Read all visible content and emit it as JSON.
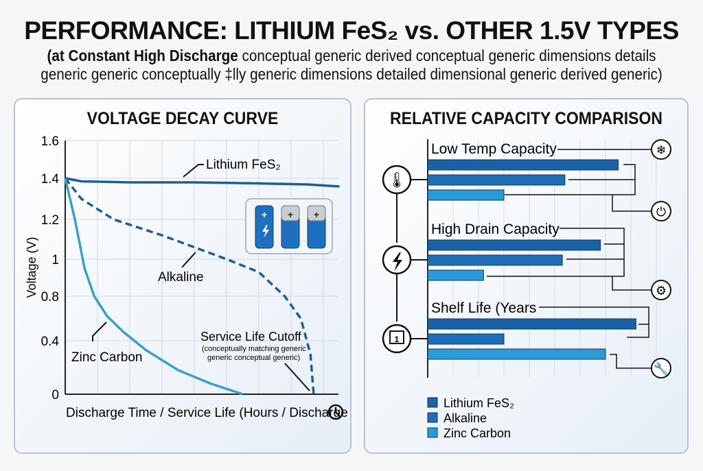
{
  "header": {
    "title": "PERFORMANCE: LITHIUM FeS₂ vs. OTHER 1.5V TYPES",
    "subtitle_bold": "(at Constant High Discharge",
    "subtitle_rest": " conceptual generic derived conceptual generic dimensions details",
    "subtitle_line2": "generic generic conceptually ‡lly generic dimensions detailed dimensional generic derived generic)"
  },
  "colors": {
    "lithium": "#1a62a8",
    "alkaline": "#1f6fb8",
    "zinc": "#2a9bd8",
    "line_lithium": "#1c5f98",
    "line_alkaline": "#1f5f94",
    "line_zinc": "#3aa0c8"
  },
  "chart_data": [
    {
      "type": "line",
      "title": "VOLTAGE DECAY CURVE",
      "xlabel": "Discharge Time / Service Life (Hours / Discharge",
      "ylabel": "Voltage (V)",
      "yticks": [
        "1.6",
        "1.4",
        "1.2",
        "1",
        "0.8",
        "0.4",
        "0"
      ],
      "ylim": [
        0,
        1.6
      ],
      "grid": true,
      "series": [
        {
          "name": "Lithium FeS₂",
          "style": "solid",
          "x": [
            0,
            0.5,
            2,
            4,
            6,
            7.5,
            8.5
          ],
          "y": [
            1.4,
            1.385,
            1.38,
            1.38,
            1.375,
            1.37,
            1.36
          ]
        },
        {
          "name": "Alkaline",
          "style": "dashed",
          "x": [
            0,
            0.5,
            1.5,
            3,
            4,
            5,
            6,
            6.8,
            7.3,
            7.6,
            7.7
          ],
          "y": [
            1.4,
            1.3,
            1.2,
            1.12,
            1.06,
            1.0,
            0.93,
            0.8,
            0.6,
            0.3,
            0
          ]
        },
        {
          "name": "Zinc Carbon",
          "style": "solid",
          "x": [
            0,
            0.3,
            0.6,
            0.9,
            1.3,
            1.8,
            2.5,
            3.5,
            4.5,
            5.5
          ],
          "y": [
            1.4,
            1.2,
            0.95,
            0.8,
            0.62,
            0.48,
            0.33,
            0.18,
            0.08,
            0
          ]
        }
      ],
      "annotations": {
        "cutoff": "Service Life Cutoff",
        "cutoff_note1": "(conceptually matching generic",
        "cutoff_note2": "generic conceptual generic)"
      }
    },
    {
      "type": "bar",
      "title": "RELATIVE CAPACITY COMPARISON",
      "orientation": "horizontal",
      "grid": true,
      "legend": "bottom-left",
      "categories": [
        "Low Temp Capacity",
        "High Drain Capacity",
        "Shelf Life (Years"
      ],
      "series": [
        {
          "name": "Lithium FeS₂",
          "values": [
            7.5,
            6.8,
            8.2
          ]
        },
        {
          "name": "Alkaline",
          "values": [
            5.4,
            5.3,
            3.0
          ]
        },
        {
          "name": "Zinc Carbon",
          "values": [
            3.0,
            2.2,
            7.0
          ]
        }
      ]
    }
  ],
  "icons": {
    "left": [
      "thermometer-icon",
      "lightning-icon",
      "calendar-icon"
    ],
    "right": [
      "snowflake-icon",
      "power-icon",
      "gear-icon",
      "wrench-icon"
    ],
    "clock": "clock-icon",
    "batteries": "battery-icon"
  }
}
